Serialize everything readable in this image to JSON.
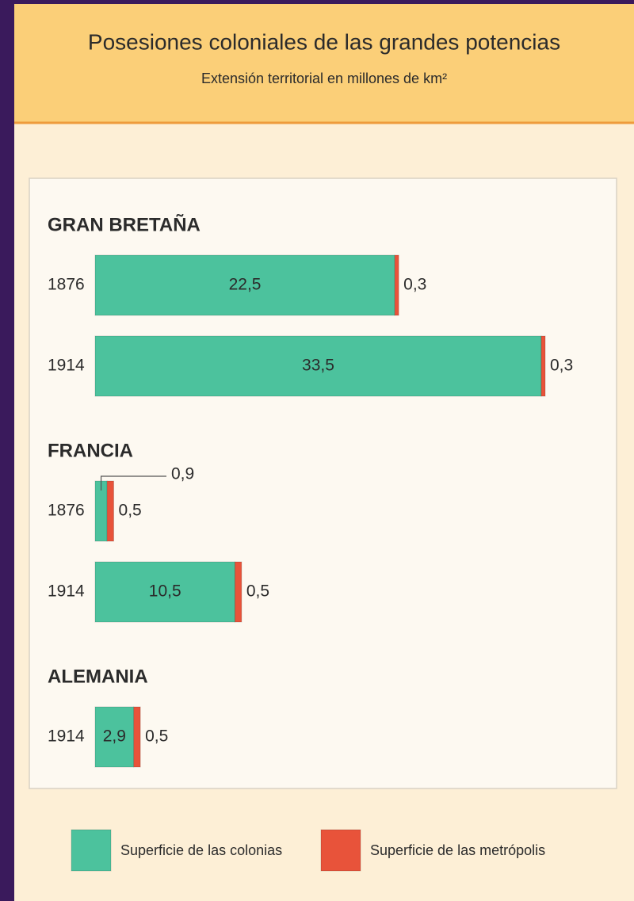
{
  "chart_data": {
    "type": "bar",
    "orientation": "horizontal",
    "stacked": true,
    "title": "Posesiones coloniales de las grandes potencias",
    "subtitle": "Extensión territorial en millones de km²",
    "groups": [
      {
        "name": "GRAN BRETAÑA",
        "categories": [
          "1876",
          "1914"
        ]
      },
      {
        "name": "FRANCIA",
        "categories": [
          "1876",
          "1914"
        ]
      },
      {
        "name": "ALEMANIA",
        "categories": [
          "1914"
        ]
      }
    ],
    "series": [
      {
        "name": "Superficie de las colonias",
        "color": "#4cc29d",
        "values": [
          22.5,
          33.5,
          0.9,
          10.5,
          2.9
        ],
        "value_labels": [
          "22,5",
          "33,5",
          "0,9",
          "10,5",
          "2,9"
        ]
      },
      {
        "name": "Superficie de las metrópolis",
        "color": "#e8533a",
        "values": [
          0.3,
          0.3,
          0.5,
          0.5,
          0.5
        ],
        "value_labels": [
          "0,3",
          "0,3",
          "0,5",
          "0,5",
          "0,5"
        ]
      }
    ],
    "legend": "bottom"
  }
}
